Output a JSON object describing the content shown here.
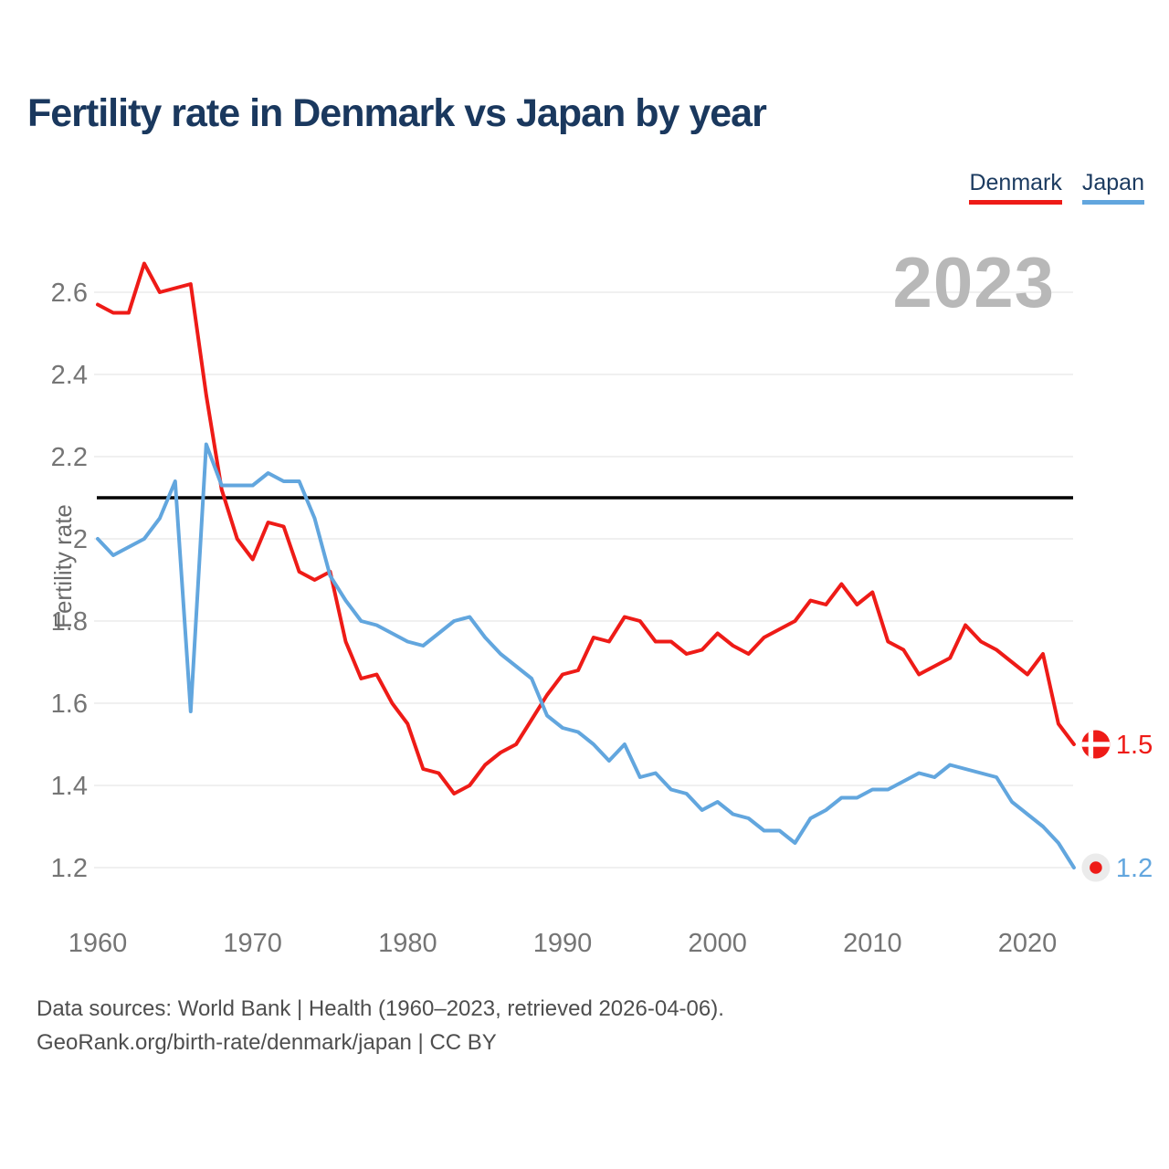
{
  "header": {
    "title": "Fertility rate in Denmark vs Japan by year"
  },
  "legend": {
    "items": [
      {
        "label": "Denmark",
        "color": "#ee1b17"
      },
      {
        "label": "Japan",
        "color": "#62a6de"
      }
    ]
  },
  "chart_data": {
    "type": "line",
    "title": "Fertility rate in Denmark vs Japan by year",
    "xlabel": "",
    "ylabel": "Fertility rate",
    "watermark": "2023",
    "grid": true,
    "legend_position": "top-right",
    "ylim": [
      1.1,
      2.72
    ],
    "xlim": [
      1960,
      2023
    ],
    "yticks": [
      2.6,
      2.4,
      2.2,
      2,
      1.8,
      1.6,
      1.4,
      1.2
    ],
    "ytick_labels": [
      "2.6",
      "2.4",
      "2.2",
      "2",
      "1.8",
      "1.6",
      "1.4",
      "1.2"
    ],
    "xticks": [
      1960,
      1970,
      1980,
      1990,
      2000,
      2010,
      2020
    ],
    "xtick_labels": [
      "1960",
      "1970",
      "1980",
      "1990",
      "2000",
      "2010",
      "2020"
    ],
    "reference_line": {
      "value": 2.1,
      "color": "#000000"
    },
    "colors": {
      "grid": "#ececec",
      "tick_text": "#757575",
      "axis_title_text": "#6a6a6a",
      "japan_flag_bg": "#ebebeb",
      "flag_red": "#ee1b17",
      "flag_cross": "#ffffff"
    },
    "x": [
      1960,
      1961,
      1962,
      1963,
      1964,
      1965,
      1966,
      1967,
      1968,
      1969,
      1970,
      1971,
      1972,
      1973,
      1974,
      1975,
      1976,
      1977,
      1978,
      1979,
      1980,
      1981,
      1982,
      1983,
      1984,
      1985,
      1986,
      1987,
      1988,
      1989,
      1990,
      1991,
      1992,
      1993,
      1994,
      1995,
      1996,
      1997,
      1998,
      1999,
      2000,
      2001,
      2002,
      2003,
      2004,
      2005,
      2006,
      2007,
      2008,
      2009,
      2010,
      2011,
      2012,
      2013,
      2014,
      2015,
      2016,
      2017,
      2018,
      2019,
      2020,
      2021,
      2022,
      2023
    ],
    "series": [
      {
        "name": "Denmark",
        "color": "#ee1b17",
        "end_label": "1.5",
        "flag": "denmark",
        "values": [
          2.57,
          2.55,
          2.55,
          2.67,
          2.6,
          2.61,
          2.62,
          2.35,
          2.12,
          2.0,
          1.95,
          2.04,
          2.03,
          1.92,
          1.9,
          1.92,
          1.75,
          1.66,
          1.67,
          1.6,
          1.55,
          1.44,
          1.43,
          1.38,
          1.4,
          1.45,
          1.48,
          1.5,
          1.56,
          1.62,
          1.67,
          1.68,
          1.76,
          1.75,
          1.81,
          1.8,
          1.75,
          1.75,
          1.72,
          1.73,
          1.77,
          1.74,
          1.72,
          1.76,
          1.78,
          1.8,
          1.85,
          1.84,
          1.89,
          1.84,
          1.87,
          1.75,
          1.73,
          1.67,
          1.69,
          1.71,
          1.79,
          1.75,
          1.73,
          1.7,
          1.67,
          1.72,
          1.55,
          1.5
        ]
      },
      {
        "name": "Japan",
        "color": "#62a6de",
        "end_label": "1.2",
        "flag": "japan",
        "values": [
          2.0,
          1.96,
          1.98,
          2.0,
          2.05,
          2.14,
          1.58,
          2.23,
          2.13,
          2.13,
          2.13,
          2.16,
          2.14,
          2.14,
          2.05,
          1.91,
          1.85,
          1.8,
          1.79,
          1.77,
          1.75,
          1.74,
          1.77,
          1.8,
          1.81,
          1.76,
          1.72,
          1.69,
          1.66,
          1.57,
          1.54,
          1.53,
          1.5,
          1.46,
          1.5,
          1.42,
          1.43,
          1.39,
          1.38,
          1.34,
          1.36,
          1.33,
          1.32,
          1.29,
          1.29,
          1.26,
          1.32,
          1.34,
          1.37,
          1.37,
          1.39,
          1.39,
          1.41,
          1.43,
          1.42,
          1.45,
          1.44,
          1.43,
          1.42,
          1.36,
          1.33,
          1.3,
          1.26,
          1.2
        ]
      }
    ]
  },
  "footer": {
    "line1": "Data sources: World Bank | Health (1960–2023, retrieved 2026-04-06).",
    "line2": "GeoRank.org/birth-rate/denmark/japan | CC BY"
  }
}
